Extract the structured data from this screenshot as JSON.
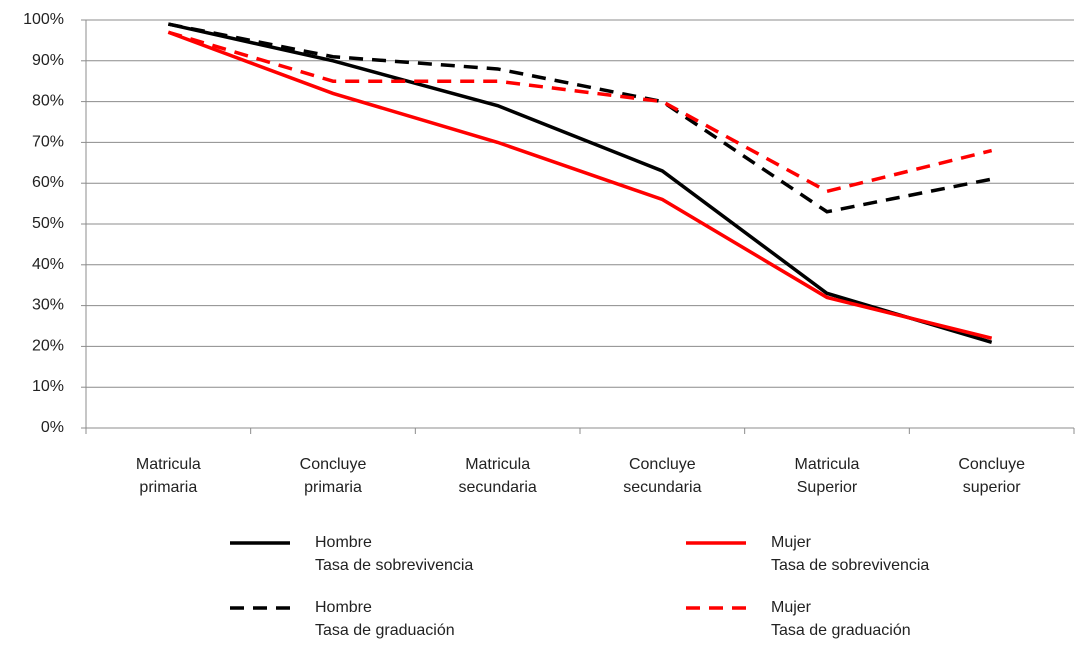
{
  "chart_data": {
    "type": "line",
    "categories": [
      "Matricula\nprimaria",
      "Concluye\nprimaria",
      "Matricula\nsecundaria",
      "Concluye\nsecundaria",
      "Matricula\nSuperior",
      "Concluye\nsuperior"
    ],
    "series": [
      {
        "name": "Hombre\nTasa de sobrevivencia",
        "color": "#000000",
        "dashed": false,
        "values": [
          99,
          90,
          79,
          63,
          33,
          21
        ]
      },
      {
        "name": "Mujer\nTasa de sobrevivencia",
        "color": "#ff0000",
        "dashed": false,
        "values": [
          97,
          82,
          70,
          56,
          32,
          22
        ]
      },
      {
        "name": "Hombre\nTasa de graduación",
        "color": "#000000",
        "dashed": true,
        "values": [
          99,
          91,
          88,
          80,
          53,
          61
        ]
      },
      {
        "name": "Mujer\nTasa de graduación",
        "color": "#ff0000",
        "dashed": true,
        "values": [
          97,
          85,
          85,
          80,
          58,
          68
        ]
      }
    ],
    "ylim": [
      0,
      100
    ],
    "yticks": [
      {
        "value": 0,
        "label": "0%"
      },
      {
        "value": 10,
        "label": "10%"
      },
      {
        "value": 20,
        "label": "20%"
      },
      {
        "value": 30,
        "label": "30%"
      },
      {
        "value": 40,
        "label": "40%"
      },
      {
        "value": 50,
        "label": "50%"
      },
      {
        "value": 60,
        "label": "60%"
      },
      {
        "value": 70,
        "label": "70%"
      },
      {
        "value": 80,
        "label": "80%"
      },
      {
        "value": 90,
        "label": "90%"
      },
      {
        "value": 100,
        "label": "100%"
      }
    ],
    "grid": true
  }
}
